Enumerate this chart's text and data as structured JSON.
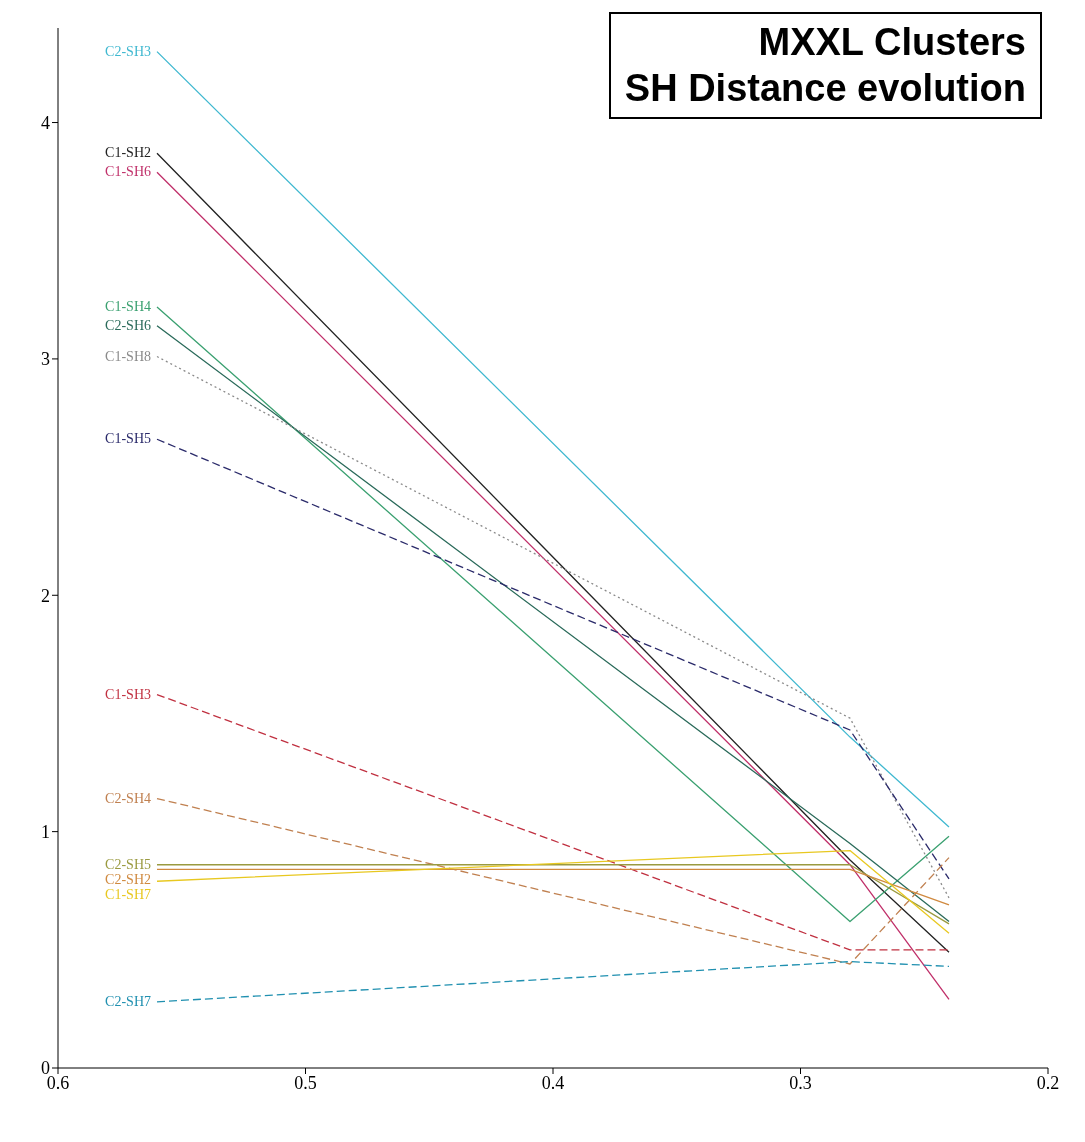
{
  "chart_data": {
    "type": "line",
    "title": "MXXL Clusters",
    "subtitle": "SH Distance evolution",
    "x": [
      0.56,
      0.28,
      0.24
    ],
    "xlim": [
      0.6,
      0.2
    ],
    "xticks": [
      0.6,
      0.5,
      0.4,
      0.3,
      0.2
    ],
    "ylim": [
      0,
      4.4
    ],
    "yticks": [
      0,
      1,
      2,
      3,
      4
    ],
    "marker": "none",
    "series": [
      {
        "name": "C2-SH3",
        "color": "#3fb8d0",
        "line_style": "solid",
        "values": [
          4.3,
          1.4,
          1.02
        ]
      },
      {
        "name": "C1-SH2",
        "color": "#222222",
        "line_style": "solid",
        "values": [
          3.87,
          0.88,
          0.49
        ]
      },
      {
        "name": "C1-SH6",
        "color": "#c0306a",
        "line_style": "solid",
        "values": [
          3.79,
          0.86,
          0.29
        ]
      },
      {
        "name": "C1-SH4",
        "color": "#3aa070",
        "line_style": "solid",
        "values": [
          3.22,
          0.62,
          0.98
        ]
      },
      {
        "name": "C2-SH6",
        "color": "#2a6a5a",
        "line_style": "solid",
        "values": [
          3.14,
          0.95,
          0.62
        ]
      },
      {
        "name": "C1-SH8",
        "color": "#8a8a8a",
        "line_style": "dotted",
        "values": [
          3.01,
          1.48,
          0.72
        ]
      },
      {
        "name": "C1-SH5",
        "color": "#2a2a6a",
        "line_style": "dashed",
        "values": [
          2.66,
          1.43,
          0.8
        ]
      },
      {
        "name": "C1-SH3",
        "color": "#c03040",
        "line_style": "dashed",
        "values": [
          1.58,
          0.5,
          0.5
        ]
      },
      {
        "name": "C2-SH4",
        "color": "#c08050",
        "line_style": "dashed",
        "values": [
          1.14,
          0.44,
          0.89
        ]
      },
      {
        "name": "C2-SH5",
        "color": "#9a9a40",
        "line_style": "solid",
        "values": [
          0.86,
          0.86,
          0.61
        ]
      },
      {
        "name": "C2-SH2",
        "color": "#d08a40",
        "line_style": "solid",
        "values": [
          0.84,
          0.84,
          0.69
        ]
      },
      {
        "name": "C1-SH7",
        "color": "#e8c820",
        "line_style": "solid",
        "values": [
          0.79,
          0.92,
          0.57
        ]
      },
      {
        "name": "C2-SH7",
        "color": "#2090b0",
        "line_style": "dashed",
        "values": [
          0.28,
          0.45,
          0.43
        ]
      }
    ]
  }
}
